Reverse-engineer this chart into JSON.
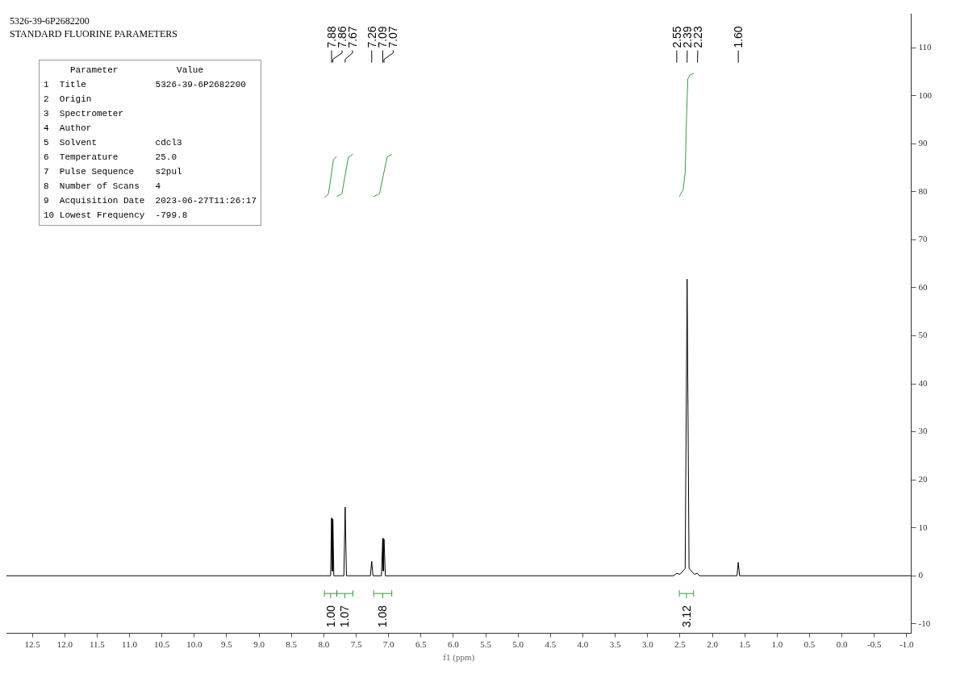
{
  "chart_data": {
    "type": "line",
    "title": "5326-39-6P2682200",
    "subtitle": "STANDARD FLUORINE PARAMETERS",
    "xlabel": "f1 (ppm)",
    "x": [
      12.9,
      8.0,
      7.895,
      7.88,
      7.873,
      7.867,
      7.86,
      7.845,
      7.69,
      7.67,
      7.65,
      7.28,
      7.26,
      7.24,
      7.11,
      7.09,
      7.083,
      7.077,
      7.07,
      7.05,
      2.6,
      2.55,
      2.5,
      2.42,
      2.39,
      2.36,
      2.28,
      2.23,
      2.2,
      1.62,
      1.6,
      1.58,
      -1.07
    ],
    "series": [
      {
        "type": "line",
        "color": "#000000",
        "values": [
          0,
          0,
          0,
          12.0,
          1,
          1,
          11.8,
          0,
          0,
          14.3,
          0,
          0,
          3.0,
          0,
          0,
          7.8,
          1,
          1,
          7.6,
          0,
          0,
          0.5,
          0.3,
          1.5,
          61.8,
          1.5,
          0.3,
          0.5,
          0,
          0,
          2.8,
          0,
          0
        ]
      },
      {
        "type": "line",
        "name": "1.00",
        "color": "#3c9a3c",
        "x": [
          7.99,
          7.93,
          7.89,
          7.85,
          7.8
        ],
        "values": [
          78.8,
          79.5,
          83,
          86.8,
          87.3
        ]
      },
      {
        "type": "line",
        "name": "1.07",
        "color": "#3c9a3c",
        "x": [
          7.8,
          7.72,
          7.67,
          7.62,
          7.55
        ],
        "values": [
          79.0,
          79.6,
          83.5,
          87.2,
          87.8
        ]
      },
      {
        "type": "line",
        "name": "1.08",
        "color": "#3c9a3c",
        "x": [
          7.23,
          7.14,
          7.08,
          7.02,
          6.95
        ],
        "values": [
          79.0,
          79.6,
          83.5,
          87.3,
          87.8
        ]
      },
      {
        "type": "line",
        "name": "3.12",
        "color": "#3c9a3c",
        "x": [
          2.51,
          2.45,
          2.42,
          2.4,
          2.38,
          2.34,
          2.29
        ],
        "values": [
          79.0,
          80.5,
          84,
          95,
          103.5,
          104.4,
          104.6
        ]
      }
    ],
    "xlim": [
      12.9,
      -1.07
    ],
    "ylim": [
      -12,
      117
    ],
    "xticks": [
      {
        "value": 12.5,
        "label": "12.5"
      },
      {
        "value": 12,
        "label": "12.0"
      },
      {
        "value": 11.5,
        "label": "11.5"
      },
      {
        "value": 11,
        "label": "11.0"
      },
      {
        "value": 10.5,
        "label": "10.5"
      },
      {
        "value": 10,
        "label": "10.0"
      },
      {
        "value": 9.5,
        "label": "9.5"
      },
      {
        "value": 9,
        "label": "9.0"
      },
      {
        "value": 8.5,
        "label": "8.5"
      },
      {
        "value": 8,
        "label": "8.0"
      },
      {
        "value": 7.5,
        "label": "7.5"
      },
      {
        "value": 7,
        "label": "7.0"
      },
      {
        "value": 6.5,
        "label": "6.5"
      },
      {
        "value": 6,
        "label": "6.0"
      },
      {
        "value": 5.5,
        "label": "5.5"
      },
      {
        "value": 5,
        "label": "5.0"
      },
      {
        "value": 4.5,
        "label": "4.5"
      },
      {
        "value": 4,
        "label": "4.0"
      },
      {
        "value": 3.5,
        "label": "3.5"
      },
      {
        "value": 3,
        "label": "3.0"
      },
      {
        "value": 2.5,
        "label": "2.5"
      },
      {
        "value": 2,
        "label": "2.0"
      },
      {
        "value": 1.5,
        "label": "1.5"
      },
      {
        "value": 1,
        "label": "1.0"
      },
      {
        "value": 0.5,
        "label": "0.5"
      },
      {
        "value": 0,
        "label": "0.0"
      },
      {
        "value": -0.5,
        "label": "-0.5"
      },
      {
        "value": -1,
        "label": "-1.0"
      }
    ],
    "yticks": [
      -10,
      0,
      10,
      20,
      30,
      40,
      50,
      60,
      70,
      80,
      90,
      100,
      110
    ],
    "legend": "bottom",
    "marker": "none",
    "line_style": "solid",
    "annotations": [
      {
        "text": "7.88",
        "x": 7.88
      },
      {
        "text": "7.86",
        "x": 7.86
      },
      {
        "text": "7.67",
        "x": 7.67
      },
      {
        "text": "7.26",
        "x": 7.26
      },
      {
        "text": "7.09",
        "x": 7.09
      },
      {
        "text": "7.07",
        "x": 7.07
      },
      {
        "text": "2.55",
        "x": 2.55
      },
      {
        "text": "2.39",
        "x": 2.39
      },
      {
        "text": "2.23",
        "x": 2.23
      },
      {
        "text": "1.60",
        "x": 1.6
      },
      "     Parameter           Value",
      "1  Title             5326-39-6P2682200",
      "2  Origin",
      "3  Spectrometer",
      "4  Author",
      "5  Solvent           cdcl3",
      "6  Temperature       25.0",
      "7  Pulse Sequence    s2pul",
      "8  Number of Scans   4",
      "9  Acquisition Date  2023-06-27T11:26:17",
      "10 Lowest Frequency  -799.8"
    ]
  }
}
